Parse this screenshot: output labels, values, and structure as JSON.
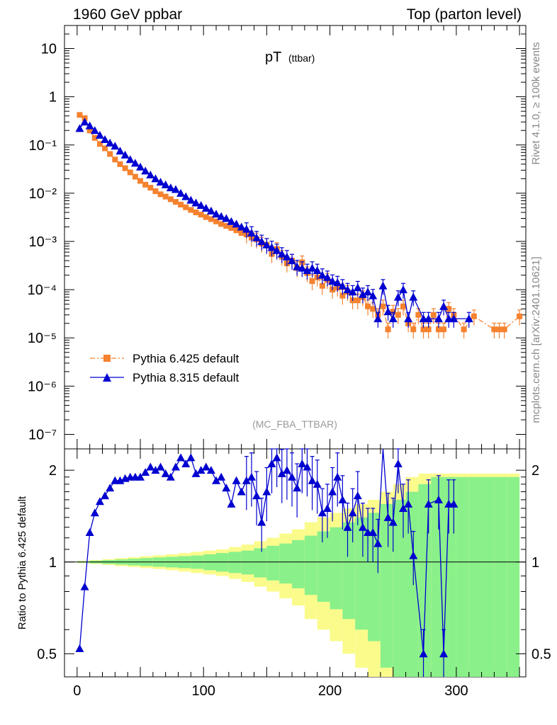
{
  "header": {
    "left": "1960 GeV ppbar",
    "right": "Top (parton level)"
  },
  "side_labels": {
    "rivet": "Rivet 4.1.0, ≥ 100k events",
    "mcplots": "mcplots.cern.ch [arXiv:2401.10621]"
  },
  "chart_data": [
    {
      "type": "line",
      "panel": "main",
      "title": "pT",
      "title_sub": "(ttbar)",
      "analysis": "(MC_FBA_TTBAR)",
      "xlabel": "",
      "ylabel": "",
      "yscale": "log",
      "xlim": [
        -10,
        355
      ],
      "ylim": [
        5e-08,
        30
      ],
      "y_ticks": [
        {
          "label": "10",
          "value": 10
        },
        {
          "label": "1",
          "value": 1
        },
        {
          "label": "10⁻¹",
          "value": 0.1
        },
        {
          "label": "10⁻²",
          "value": 0.01
        },
        {
          "label": "10⁻³",
          "value": 0.001
        },
        {
          "label": "10⁻⁴",
          "value": 0.0001
        },
        {
          "label": "10⁻⁵",
          "value": 1e-05
        },
        {
          "label": "10⁻⁶",
          "value": 1e-06
        },
        {
          "label": "10⁻⁷",
          "value": 1e-07
        }
      ],
      "legend": [
        {
          "name": "Pythia 6.425 default",
          "color": "#f5822f",
          "marker": "square",
          "dash": "dashdot"
        },
        {
          "name": "Pythia 8.315 default",
          "color": "#0000d0",
          "marker": "triangle",
          "dash": "solid"
        }
      ],
      "series": [
        {
          "name": "Pythia 6.425 default",
          "color": "#f5822f",
          "x": [
            2,
            6,
            10,
            14,
            18,
            22,
            26,
            30,
            34,
            38,
            42,
            46,
            50,
            54,
            58,
            62,
            66,
            70,
            74,
            78,
            82,
            86,
            90,
            94,
            98,
            102,
            106,
            110,
            114,
            118,
            122,
            126,
            130,
            134,
            138,
            142,
            146,
            150,
            154,
            158,
            162,
            166,
            170,
            174,
            178,
            182,
            186,
            190,
            194,
            198,
            202,
            206,
            210,
            214,
            218,
            222,
            226,
            230,
            234,
            238,
            242,
            246,
            250,
            254,
            258,
            262,
            266,
            270,
            274,
            278,
            282,
            286,
            290,
            294,
            298,
            306,
            314,
            330,
            334,
            338,
            350
          ],
          "y": [
            0.42,
            0.36,
            0.2,
            0.14,
            0.105,
            0.085,
            0.065,
            0.05,
            0.04,
            0.033,
            0.027,
            0.022,
            0.018,
            0.015,
            0.013,
            0.011,
            0.0095,
            0.0085,
            0.0075,
            0.0066,
            0.0058,
            0.0051,
            0.0045,
            0.004,
            0.0036,
            0.0032,
            0.0029,
            0.0026,
            0.0023,
            0.0021,
            0.0019,
            0.0017,
            0.0015,
            0.0014,
            0.0012,
            0.0011,
            0.0009,
            0.00085,
            0.00055,
            0.0007,
            0.00048,
            0.00035,
            0.0004,
            0.00028,
            0.00037,
            0.00022,
            0.00015,
            0.00018,
            0.00012,
            0.00016,
            0.0001,
            0.00011,
            7.5e-05,
            9e-05,
            6e-05,
            6e-05,
            7e-05,
            4.5e-05,
            4e-05,
            3e-05,
            4.5e-05,
            1.5e-05,
            3.5e-05,
            3e-05,
            4.5e-05,
            2e-05,
            1.5e-05,
            3e-05,
            1.5e-05,
            1.5e-05,
            3e-05,
            1.5e-05,
            1.5e-05,
            4e-05,
            3e-05,
            1.5e-05,
            2.8e-05,
            1.5e-05,
            1.5e-05,
            1.5e-05,
            2.8e-05
          ]
        },
        {
          "name": "Pythia 8.315 default",
          "color": "#0000d0",
          "x": [
            2,
            6,
            10,
            14,
            18,
            22,
            26,
            30,
            34,
            38,
            42,
            46,
            50,
            54,
            58,
            62,
            66,
            70,
            74,
            78,
            82,
            86,
            90,
            94,
            98,
            102,
            106,
            110,
            114,
            118,
            122,
            126,
            130,
            134,
            138,
            142,
            146,
            150,
            154,
            158,
            162,
            166,
            170,
            174,
            178,
            182,
            186,
            190,
            194,
            198,
            202,
            206,
            210,
            214,
            218,
            222,
            226,
            230,
            234,
            238,
            242,
            246,
            250,
            254,
            258,
            262,
            266,
            274,
            278,
            286,
            290,
            294,
            298,
            310
          ],
          "y": [
            0.22,
            0.3,
            0.25,
            0.2,
            0.16,
            0.13,
            0.11,
            0.095,
            0.075,
            0.062,
            0.05,
            0.042,
            0.035,
            0.029,
            0.024,
            0.02,
            0.017,
            0.015,
            0.013,
            0.012,
            0.01,
            0.0085,
            0.0072,
            0.0063,
            0.0056,
            0.0049,
            0.0043,
            0.0037,
            0.0033,
            0.003,
            0.0026,
            0.0023,
            0.002,
            0.0018,
            0.0015,
            0.0012,
            0.001,
            0.00085,
            0.00075,
            0.00065,
            0.00055,
            0.00048,
            0.0004,
            0.0003,
            0.00028,
            0.00025,
            0.00028,
            0.00025,
            0.0002,
            0.00018,
            0.00015,
            0.00014,
            0.00012,
            0.0001,
            9e-05,
            0.00011,
            8e-05,
            9e-05,
            7.5e-05,
            2.5e-05,
            0.00012,
            3.5e-05,
            2.5e-05,
            7e-05,
            0.0001,
            2.5e-05,
            7e-05,
            2.5e-05,
            2.5e-05,
            2.5e-05,
            4.5e-05,
            2.5e-05,
            2.5e-05,
            2.5e-05
          ]
        }
      ]
    },
    {
      "type": "line",
      "panel": "ratio",
      "ylabel": "Ratio to Pythia 6.425 default",
      "xlabel": "",
      "yscale": "log",
      "xlim": [
        -10,
        355
      ],
      "ylim": [
        0.42,
        2.35
      ],
      "x_ticks": [
        0,
        100,
        200,
        300
      ],
      "y_ticks": [
        {
          "label": "0.5",
          "value": 0.5
        },
        {
          "label": "1",
          "value": 1
        },
        {
          "label": "2",
          "value": 2
        }
      ],
      "reference_line": 1.0,
      "bands": {
        "inner_color": "#8af08a",
        "outer_color": "#fbfb8c",
        "x": [
          0,
          10,
          20,
          30,
          40,
          50,
          60,
          70,
          80,
          90,
          100,
          110,
          120,
          130,
          140,
          150,
          160,
          170,
          180,
          190,
          200,
          210,
          220,
          230,
          240,
          250,
          260,
          270,
          280,
          290,
          300,
          310,
          320,
          330,
          340
        ],
        "inner_halfwidth": [
          0.005,
          0.01,
          0.015,
          0.02,
          0.025,
          0.03,
          0.035,
          0.04,
          0.045,
          0.05,
          0.06,
          0.07,
          0.08,
          0.09,
          0.11,
          0.13,
          0.15,
          0.18,
          0.22,
          0.26,
          0.3,
          0.35,
          0.4,
          0.45,
          0.55,
          0.6,
          0.7,
          0.8,
          0.9,
          0.9,
          0.9,
          0.9,
          0.9,
          0.9,
          0.9
        ],
        "outer_halfwidth": [
          0.008,
          0.015,
          0.022,
          0.03,
          0.037,
          0.045,
          0.052,
          0.06,
          0.07,
          0.08,
          0.09,
          0.1,
          0.12,
          0.14,
          0.17,
          0.2,
          0.24,
          0.28,
          0.35,
          0.4,
          0.45,
          0.5,
          0.55,
          0.6,
          0.7,
          0.8,
          0.9,
          0.95,
          0.95,
          0.95,
          0.95,
          0.95,
          0.95,
          0.95,
          0.95
        ]
      },
      "series": [
        {
          "name": "Pythia 8.315 default",
          "color": "#0000d0",
          "x": [
            2,
            6,
            10,
            14,
            18,
            22,
            26,
            30,
            34,
            38,
            42,
            46,
            50,
            54,
            58,
            62,
            66,
            70,
            74,
            78,
            82,
            86,
            90,
            94,
            98,
            102,
            106,
            110,
            114,
            118,
            122,
            126,
            130,
            134,
            138,
            142,
            146,
            150,
            154,
            158,
            162,
            166,
            170,
            174,
            178,
            182,
            186,
            190,
            194,
            198,
            202,
            206,
            210,
            214,
            218,
            222,
            226,
            230,
            234,
            238,
            242,
            246,
            250,
            254,
            258,
            262,
            266,
            274,
            278,
            286,
            290,
            294,
            298
          ],
          "y": [
            0.52,
            0.83,
            1.25,
            1.45,
            1.58,
            1.65,
            1.75,
            1.85,
            1.85,
            1.88,
            1.9,
            1.9,
            1.9,
            1.97,
            2.05,
            2.0,
            2.05,
            1.95,
            1.9,
            2.05,
            2.2,
            2.1,
            2.2,
            1.95,
            2.0,
            2.05,
            2.0,
            1.85,
            1.9,
            1.75,
            1.55,
            1.85,
            1.7,
            1.85,
            1.9,
            1.65,
            1.35,
            1.7,
            2.1,
            2.2,
            1.95,
            2.0,
            1.9,
            1.75,
            2.1,
            2.05,
            1.85,
            1.8,
            1.45,
            1.5,
            1.7,
            1.9,
            1.6,
            1.3,
            1.45,
            1.65,
            1.3,
            1.25,
            1.25,
            1.15,
            2.45,
            1.4,
            1.35,
            2.1,
            1.5,
            1.55,
            1.05,
            0.5,
            1.55,
            1.6,
            0.5,
            1.55,
            1.55
          ]
        }
      ]
    }
  ]
}
